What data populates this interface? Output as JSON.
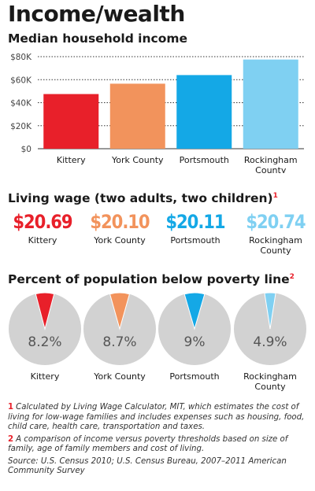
{
  "title": "Income/wealth",
  "income": {
    "heading": "Median household income"
  },
  "living_wage": {
    "heading": "Living wage (two adults, two children)",
    "footnote_mark": "1",
    "items": [
      {
        "value": "$20.69",
        "label": "Kittery",
        "color": "#e8202a"
      },
      {
        "value": "$20.10",
        "label": "York County",
        "color": "#f2935c"
      },
      {
        "value": "$20.11",
        "label": "Portsmouth",
        "color": "#14a8e6"
      },
      {
        "value": "$20.74",
        "label": "Rockingham County",
        "color": "#7fd0f2"
      }
    ]
  },
  "poverty": {
    "heading": "Percent of population below poverty line",
    "footnote_mark": "2"
  },
  "notes": {
    "note1_num": "1",
    "note1": "Calculated by Living Wage Calculator, MIT, which estimates the cost of living for low-wage families and includes expenses such as housing, food, child care, health care, transportation and taxes.",
    "note2_num": "2",
    "note2": "A comparison of income versus poverty thresholds based on size of family, age of family members and cost of living.",
    "source": "Source: U.S. Census 2010; U.S. Census Bureau, 2007–2011 American Community Survey"
  },
  "chart_data": [
    {
      "type": "bar",
      "title": "Median household income",
      "categories": [
        "Kittery",
        "York County",
        "Portsmouth",
        "Rockingham County"
      ],
      "values": [
        47500,
        56500,
        64000,
        77500
      ],
      "colors": [
        "#e8202a",
        "#f2935c",
        "#14a8e6",
        "#7fd0f2"
      ],
      "ylim": [
        0,
        80000
      ],
      "yticks": [
        0,
        20000,
        40000,
        60000,
        80000
      ],
      "ytick_labels": [
        "$0",
        "$20K",
        "$40K",
        "$60K",
        "$80K"
      ],
      "grid": true,
      "grid_style": "dotted"
    },
    {
      "type": "pie",
      "title": "Percent of population below poverty line",
      "categories": [
        "Kittery",
        "York County",
        "Portsmouth",
        "Rockingham County"
      ],
      "values": [
        8.2,
        8.7,
        9,
        4.9
      ],
      "value_labels": [
        "8.2%",
        "8.7%",
        "9%",
        "4.9%"
      ],
      "colors": [
        "#e8202a",
        "#f2935c",
        "#14a8e6",
        "#7fd0f2"
      ],
      "remainder_color": "#d2d2d2"
    }
  ]
}
